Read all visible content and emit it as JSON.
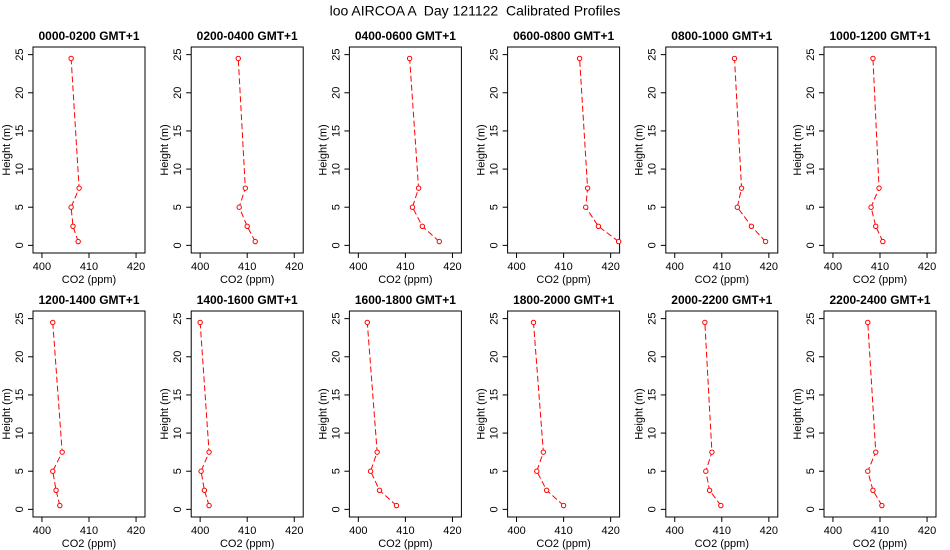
{
  "title": "loo AIRCOA A  Day 121122  Calibrated Profiles",
  "chart_data": [
    {
      "type": "line",
      "title": "0000-0200 GMT+1",
      "xlabel": "CO2 (ppm)",
      "ylabel": "Height (m)",
      "color": "#ff0000",
      "xlim": [
        398.1,
        421.9
      ],
      "xticks": [
        400,
        410,
        420
      ],
      "ylim": [
        -1,
        26
      ],
      "yticks": [
        0,
        5,
        10,
        15,
        20,
        25
      ],
      "x": [
        407.7,
        406.6,
        406.2,
        407.9,
        406.2
      ],
      "y": [
        0.5,
        2.5,
        5,
        7.5,
        24.5
      ]
    },
    {
      "type": "line",
      "title": "0200-0400 GMT+1",
      "xlabel": "CO2 (ppm)",
      "ylabel": "Height (m)",
      "color": "#ff0000",
      "xlim": [
        398.1,
        421.9
      ],
      "xticks": [
        400,
        410,
        420
      ],
      "ylim": [
        -1,
        26
      ],
      "yticks": [
        0,
        5,
        10,
        15,
        20,
        25
      ],
      "x": [
        411.7,
        410,
        408.3,
        409.6,
        408.1
      ],
      "y": [
        0.5,
        2.5,
        5,
        7.5,
        24.5
      ]
    },
    {
      "type": "line",
      "title": "0400-0600 GMT+1",
      "xlabel": "CO2 (ppm)",
      "ylabel": "Height (m)",
      "color": "#ff0000",
      "xlim": [
        398.1,
        421.9
      ],
      "xticks": [
        400,
        410,
        420
      ],
      "ylim": [
        -1,
        26
      ],
      "yticks": [
        0,
        5,
        10,
        15,
        20,
        25
      ],
      "x": [
        417.2,
        413.6,
        411.5,
        412.8,
        410.9
      ],
      "y": [
        0.5,
        2.5,
        5,
        7.5,
        24.5
      ]
    },
    {
      "type": "line",
      "title": "0600-0800 GMT+1",
      "xlabel": "CO2 (ppm)",
      "ylabel": "Height (m)",
      "color": "#ff0000",
      "xlim": [
        398.1,
        421.9
      ],
      "xticks": [
        400,
        410,
        420
      ],
      "ylim": [
        -1,
        26
      ],
      "yticks": [
        0,
        5,
        10,
        15,
        20,
        25
      ],
      "x": [
        421.7,
        417.4,
        414.7,
        415.1,
        413.4
      ],
      "y": [
        0.5,
        2.5,
        5,
        7.5,
        24.5
      ]
    },
    {
      "type": "line",
      "title": "0800-1000 GMT+1",
      "xlabel": "CO2 (ppm)",
      "ylabel": "Height (m)",
      "color": "#ff0000",
      "xlim": [
        398.1,
        421.9
      ],
      "xticks": [
        400,
        410,
        420
      ],
      "ylim": [
        -1,
        26
      ],
      "yticks": [
        0,
        5,
        10,
        15,
        20,
        25
      ],
      "x": [
        419.3,
        416.3,
        413.3,
        414.2,
        412.7
      ],
      "y": [
        0.5,
        2.5,
        5,
        7.5,
        24.5
      ]
    },
    {
      "type": "line",
      "title": "1000-1200 GMT+1",
      "xlabel": "CO2 (ppm)",
      "ylabel": "Height (m)",
      "color": "#ff0000",
      "xlim": [
        398.1,
        421.9
      ],
      "xticks": [
        400,
        410,
        420
      ],
      "ylim": [
        -1,
        26
      ],
      "yticks": [
        0,
        5,
        10,
        15,
        20,
        25
      ],
      "x": [
        410.6,
        409.1,
        408.1,
        409.8,
        408.5
      ],
      "y": [
        0.5,
        2.5,
        5,
        7.5,
        24.5
      ]
    },
    {
      "type": "line",
      "title": "1200-1400 GMT+1",
      "xlabel": "CO2 (ppm)",
      "ylabel": "Height (m)",
      "color": "#ff0000",
      "xlim": [
        398.1,
        421.9
      ],
      "xticks": [
        400,
        410,
        420
      ],
      "ylim": [
        -1,
        26
      ],
      "yticks": [
        0,
        5,
        10,
        15,
        20,
        25
      ],
      "x": [
        403.8,
        403,
        402.3,
        404.3,
        402.3
      ],
      "y": [
        0.5,
        2.5,
        5,
        7.5,
        24.5
      ]
    },
    {
      "type": "line",
      "title": "1400-1600 GMT+1",
      "xlabel": "CO2 (ppm)",
      "ylabel": "Height (m)",
      "color": "#ff0000",
      "xlim": [
        398.1,
        421.9
      ],
      "xticks": [
        400,
        410,
        420
      ],
      "ylim": [
        -1,
        26
      ],
      "yticks": [
        0,
        5,
        10,
        15,
        20,
        25
      ],
      "x": [
        401.9,
        400.9,
        400.2,
        401.9,
        400
      ],
      "y": [
        0.5,
        2.5,
        5,
        7.5,
        24.5
      ]
    },
    {
      "type": "line",
      "title": "1600-1800 GMT+1",
      "xlabel": "CO2 (ppm)",
      "ylabel": "Height (m)",
      "color": "#ff0000",
      "xlim": [
        398.1,
        421.9
      ],
      "xticks": [
        400,
        410,
        420
      ],
      "ylim": [
        -1,
        26
      ],
      "yticks": [
        0,
        5,
        10,
        15,
        20,
        25
      ],
      "x": [
        408.1,
        404.5,
        402.6,
        404,
        401.9
      ],
      "y": [
        0.5,
        2.5,
        5,
        7.5,
        24.5
      ]
    },
    {
      "type": "line",
      "title": "1800-2000 GMT+1",
      "xlabel": "CO2 (ppm)",
      "ylabel": "Height (m)",
      "color": "#ff0000",
      "xlim": [
        398.1,
        421.9
      ],
      "xticks": [
        400,
        410,
        420
      ],
      "ylim": [
        -1,
        26
      ],
      "yticks": [
        0,
        5,
        10,
        15,
        20,
        25
      ],
      "x": [
        410,
        406.4,
        404.3,
        405.7,
        403.6
      ],
      "y": [
        0.5,
        2.5,
        5,
        7.5,
        24.5
      ]
    },
    {
      "type": "line",
      "title": "2000-2200 GMT+1",
      "xlabel": "CO2 (ppm)",
      "ylabel": "Height (m)",
      "color": "#ff0000",
      "xlim": [
        398.1,
        421.9
      ],
      "xticks": [
        400,
        410,
        420
      ],
      "ylim": [
        -1,
        26
      ],
      "yticks": [
        0,
        5,
        10,
        15,
        20,
        25
      ],
      "x": [
        409.8,
        407.4,
        406.6,
        407.9,
        406.4
      ],
      "y": [
        0.5,
        2.5,
        5,
        7.5,
        24.5
      ]
    },
    {
      "type": "line",
      "title": "2200-2400 GMT+1",
      "xlabel": "CO2 (ppm)",
      "ylabel": "Height (m)",
      "color": "#ff0000",
      "xlim": [
        398.1,
        421.9
      ],
      "xticks": [
        400,
        410,
        420
      ],
      "ylim": [
        -1,
        26
      ],
      "yticks": [
        0,
        5,
        10,
        15,
        20,
        25
      ],
      "x": [
        410.4,
        408.5,
        407.4,
        409.1,
        407.4
      ],
      "y": [
        0.5,
        2.5,
        5,
        7.5,
        24.5
      ]
    }
  ]
}
